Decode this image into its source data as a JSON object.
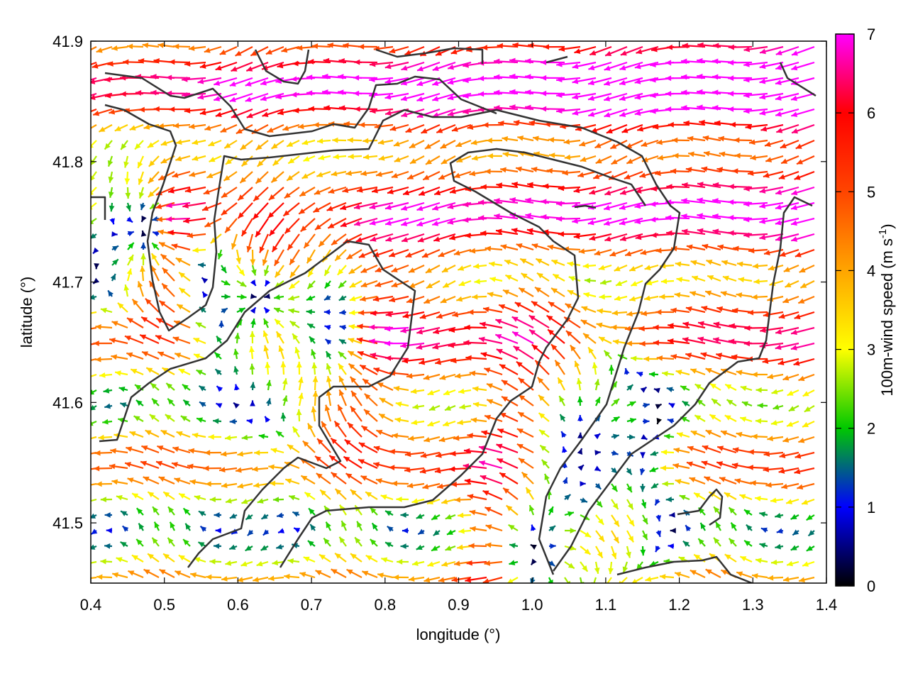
{
  "chart_data": {
    "type": "vector_field",
    "title": "",
    "xlabel": "longitude (°)",
    "ylabel": "latitude (°)",
    "xlim": [
      0.4,
      1.4
    ],
    "ylim": [
      41.45,
      41.9
    ],
    "xticks": [
      "0.4",
      "0.5",
      "0.6",
      "0.7",
      "0.8",
      "0.9",
      "1.0",
      "1.1",
      "1.2",
      "1.3",
      "1.4"
    ],
    "yticks": [
      "41.5",
      "41.6",
      "41.7",
      "41.8",
      "41.9"
    ],
    "grid": false,
    "colorbar": {
      "label": "100m-wind speed (m s⁻¹)",
      "label_main": "100m-wind speed (m s",
      "label_exp": "-1",
      "label_close": ")",
      "range": [
        0,
        7
      ],
      "ticks": [
        "0",
        "1",
        "2",
        "3",
        "4",
        "5",
        "6",
        "7"
      ],
      "colormap": [
        "#000000",
        "#0000ff",
        "#00c800",
        "#ffff00",
        "#ffa500",
        "#ff4500",
        "#ff0000",
        "#ff00ff"
      ]
    },
    "field_description": "Wind arrows colored by 100m wind speed; strong easterly-to-westerly flow (~7 m/s, magenta) in the northeast, weak convergent flow (<2 m/s) in valleys around 0.65-0.75 lon / 41.65-41.7 lat and 1.0-1.1 lon / 41.5-41.6 lat.",
    "contour_color": "#333333"
  }
}
